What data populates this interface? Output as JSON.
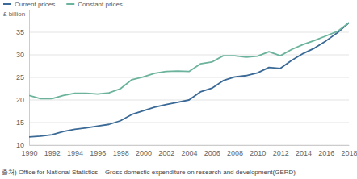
{
  "chart_data": {
    "type": "line",
    "y_label": "£ billion",
    "source": "출처) Office for National Statistics – Gross domestic expenditure on research and development(GERD)",
    "x": [
      1990,
      1991,
      1992,
      1993,
      1994,
      1995,
      1996,
      1997,
      1998,
      1999,
      2000,
      2001,
      2002,
      2003,
      2004,
      2005,
      2006,
      2007,
      2008,
      2009,
      2010,
      2011,
      2012,
      2013,
      2014,
      2015,
      2016,
      2017,
      2018
    ],
    "series": [
      {
        "name": "Current prices",
        "color": "#3b6a97",
        "values": [
          11.8,
          12.0,
          12.3,
          13.0,
          13.5,
          13.8,
          14.2,
          14.6,
          15.4,
          16.8,
          17.6,
          18.4,
          19.0,
          19.5,
          20.0,
          21.8,
          22.6,
          24.3,
          25.1,
          25.4,
          26.0,
          27.2,
          27.0,
          28.8,
          30.3,
          31.5,
          33.1,
          34.9,
          37.1
        ]
      },
      {
        "name": "Constant prices",
        "color": "#6bb39c",
        "values": [
          21.0,
          20.3,
          20.3,
          21.0,
          21.5,
          21.5,
          21.3,
          21.6,
          22.5,
          24.5,
          25.1,
          25.9,
          26.3,
          26.4,
          26.3,
          28.0,
          28.4,
          29.8,
          29.8,
          29.5,
          29.7,
          30.7,
          29.8,
          31.2,
          32.3,
          33.2,
          34.2,
          35.2,
          37.1
        ]
      }
    ],
    "xlim": [
      1990,
      2018
    ],
    "xticks": [
      1990,
      1992,
      1994,
      1996,
      1998,
      2000,
      2002,
      2004,
      2006,
      2008,
      2010,
      2012,
      2014,
      2016,
      2018
    ],
    "ylim": [
      10,
      40
    ],
    "yticks": [
      10,
      15,
      20,
      25,
      30,
      35
    ],
    "grid": true,
    "legend": "top-left"
  }
}
